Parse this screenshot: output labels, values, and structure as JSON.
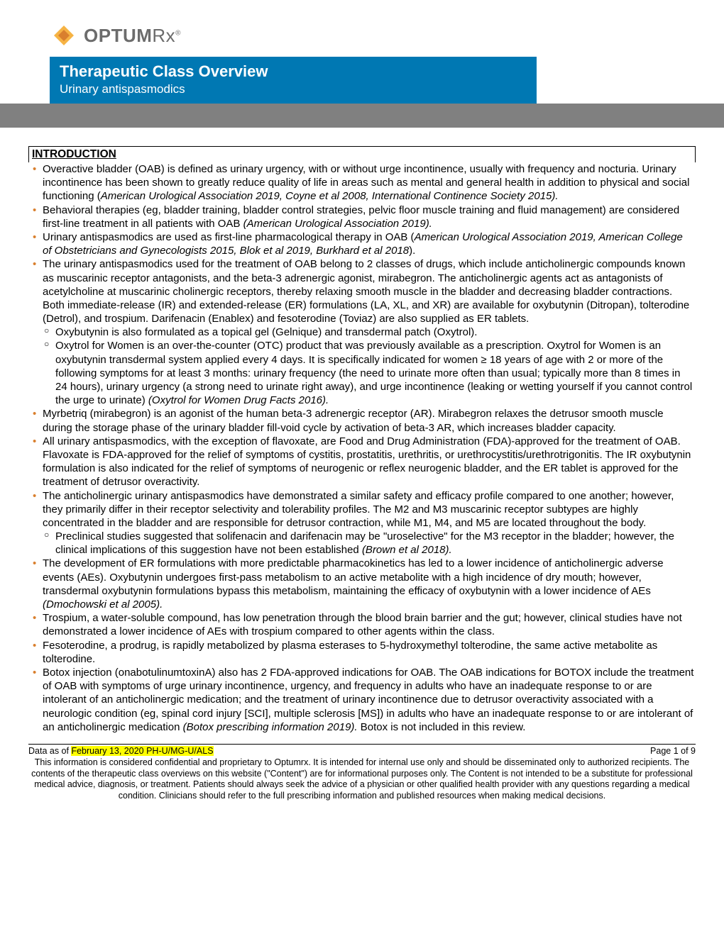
{
  "logo": {
    "text_bold": "OPTUM",
    "text_rx": "Rx",
    "mark_color1": "#f5a623",
    "mark_color2": "#d97f2e"
  },
  "header": {
    "title": "Therapeutic Class Overview",
    "subtitle": "Urinary antispasmodics",
    "title_bg": "#0078b3",
    "gray_bar_bg": "#808080"
  },
  "section_heading": "INTRODUCTION",
  "bullets": [
    {
      "text": "Overactive bladder (OAB) is defined as urinary urgency, with or without urge incontinence, usually with frequency and nocturia. Urinary incontinence has been shown to greatly reduce quality of life in areas such as mental and general health in addition to physical and social functioning (",
      "italic_tail": "American Urological Association 2019, Coyne et al 2008, International Continence Society 2015).",
      "children": []
    },
    {
      "text": "Behavioral therapies (eg, bladder training, bladder control strategies, pelvic floor muscle training and fluid management) are considered first-line treatment in all patients with OAB ",
      "italic_tail": "(American Urological Association 2019).",
      "children": []
    },
    {
      "text": "Urinary antispasmodics are used as first-line pharmacological therapy in OAB (",
      "italic_tail": "American Urological Association 2019, American College of Obstetricians and Gynecologists 2015, Blok et al 2019, Burkhard et al 2018",
      "post": ").",
      "children": []
    },
    {
      "text": "The urinary antispasmodics used for the treatment of OAB belong to 2 classes of drugs, which include anticholinergic compounds known as muscarinic receptor antagonists, and the beta-3 adrenergic agonist, mirabegron. The anticholinergic agents act as antagonists of acetylcholine at muscarinic cholinergic receptors, thereby relaxing smooth muscle in the bladder and decreasing bladder contractions. Both immediate-release (IR) and extended-release (ER) formulations (LA, XL, and XR) are available for oxybutynin (Ditropan), tolterodine (Detrol), and trospium. Darifenacin (Enablex) and fesoterodine (Toviaz) are also supplied as ER tablets.",
      "children": [
        {
          "text": "Oxybutynin is also formulated as a topical gel (Gelnique) and transdermal patch (Oxytrol)."
        },
        {
          "text": "Oxytrol for Women is an over-the-counter (OTC) product that was previously available as a prescription. Oxytrol for Women is an oxybutynin transdermal system applied every 4 days. It is specifically indicated for women ≥ 18 years of age with 2 or more of the following symptoms for at least 3 months: urinary frequency (the need to urinate more often than usual; typically more than 8 times in 24 hours), urinary urgency (a strong need to urinate right away), and urge incontinence (leaking or wetting yourself if you cannot control the urge to urinate) ",
          "italic_tail": "(Oxytrol for Women Drug Facts 2016)."
        }
      ]
    },
    {
      "text": "Myrbetriq (mirabegron) is an agonist of the human beta-3 adrenergic receptor (AR). Mirabegron relaxes the detrusor smooth muscle during the storage phase of the urinary bladder fill-void cycle by activation of beta-3 AR, which increases bladder capacity.",
      "children": []
    },
    {
      "text": "All urinary antispasmodics, with the exception of flavoxate, are Food and Drug Administration (FDA)-approved for the treatment of OAB. Flavoxate is FDA-approved for the relief of symptoms of cystitis, prostatitis, urethritis, or urethrocystitis/urethrotrigonitis. The IR oxybutynin formulation is also indicated for the relief of symptoms of neurogenic or reflex neurogenic bladder, and the ER tablet is approved for the treatment of detrusor overactivity.",
      "children": []
    },
    {
      "text": "The anticholinergic urinary antispasmodics have demonstrated a similar safety and efficacy profile compared to one another; however, they primarily differ in their receptor selectivity and tolerability profiles. The M2 and M3 muscarinic receptor subtypes are highly concentrated in the bladder and are responsible for detrusor contraction, while M1, M4, and M5 are located throughout the body.",
      "children": [
        {
          "text": "Preclinical studies suggested that solifenacin and darifenacin may be \"uroselective\" for the M3 receptor in the bladder; however, the clinical implications of this suggestion have not been established ",
          "italic_tail": "(Brown et al 2018)."
        }
      ]
    },
    {
      "text": "The development of ER formulations with more predictable pharmacokinetics has led to a lower incidence of anticholinergic adverse events (AEs). Oxybutynin undergoes first-pass metabolism to an active metabolite with a high incidence of dry mouth; however, transdermal oxybutynin formulations bypass this metabolism, maintaining the efficacy of oxybutynin with a lower incidence of AEs ",
      "italic_tail": "(Dmochowski et al 2005).",
      "children": []
    },
    {
      "text": "Trospium, a water-soluble compound, has low penetration through the blood brain barrier and the gut; however, clinical studies have not demonstrated a lower incidence of AEs with trospium compared to other agents within the class.",
      "children": []
    },
    {
      "text": "Fesoterodine, a prodrug, is rapidly metabolized by plasma esterases to 5-hydroxymethyl tolterodine, the same active metabolite as tolterodine.",
      "children": []
    },
    {
      "text": "Botox injection (onabotulinumtoxinA) also has 2 FDA-approved indications for OAB. The OAB indications for BOTOX include the treatment of OAB with symptoms of urge urinary incontinence, urgency, and frequency in adults who have an inadequate response to or are intolerant of an anticholinergic medication; and the treatment of urinary incontinence due to detrusor overactivity associated with a neurologic condition (eg, spinal cord injury [SCI], multiple sclerosis [MS]) in adults who have an inadequate response to or are intolerant of an anticholinergic medication ",
      "italic_tail": "(Botox prescribing information 2019).",
      "post": " Botox is not included in this review.",
      "children": []
    }
  ],
  "footer": {
    "date_prefix": "Data as of ",
    "date_highlight": "February 13, 2020 PH-U/MG-U/ALS",
    "page": "Page 1 of 9",
    "disclaimer": "This information is considered confidential and proprietary to Optumrx. It is intended for internal use only and should be disseminated only to authorized recipients. The contents of the therapeutic class overviews on this website (\"Content\") are for informational purposes only. The Content is not intended to be a substitute for professional medical advice, diagnosis, or treatment. Patients should always seek the advice of a physician or other qualified health provider with any questions regarding a medical condition. Clinicians should refer to the full prescribing information and published resources when making medical decisions."
  }
}
